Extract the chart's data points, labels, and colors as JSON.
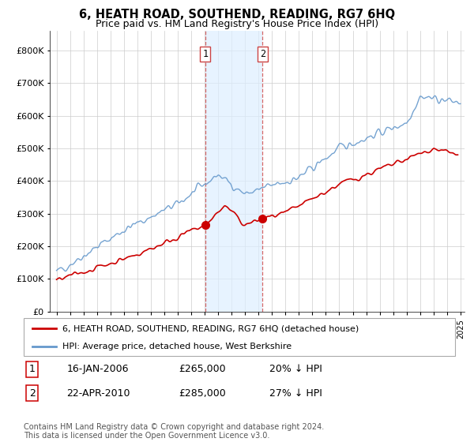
{
  "title": "6, HEATH ROAD, SOUTHEND, READING, RG7 6HQ",
  "subtitle": "Price paid vs. HM Land Registry's House Price Index (HPI)",
  "ytick_values": [
    0,
    100000,
    200000,
    300000,
    400000,
    500000,
    600000,
    700000,
    800000
  ],
  "ylim": [
    0,
    860000
  ],
  "sale1_date_num": 2006.04,
  "sale1_price": 265000,
  "sale2_date_num": 2010.31,
  "sale2_price": 285000,
  "red_line_color": "#cc0000",
  "blue_line_color": "#6699cc",
  "vline_color": "#cc4444",
  "vline_shade_color": "#ddeeff",
  "legend_line1": "6, HEATH ROAD, SOUTHEND, READING, RG7 6HQ (detached house)",
  "legend_line2": "HPI: Average price, detached house, West Berkshire",
  "footer": "Contains HM Land Registry data © Crown copyright and database right 2024.\nThis data is licensed under the Open Government Licence v3.0.",
  "background_color": "#ffffff",
  "grid_color": "#cccccc",
  "table_row1_date": "16-JAN-2006",
  "table_row1_price": "£265,000",
  "table_row1_hpi": "20% ↓ HPI",
  "table_row2_date": "22-APR-2010",
  "table_row2_price": "£285,000",
  "table_row2_hpi": "27% ↓ HPI"
}
